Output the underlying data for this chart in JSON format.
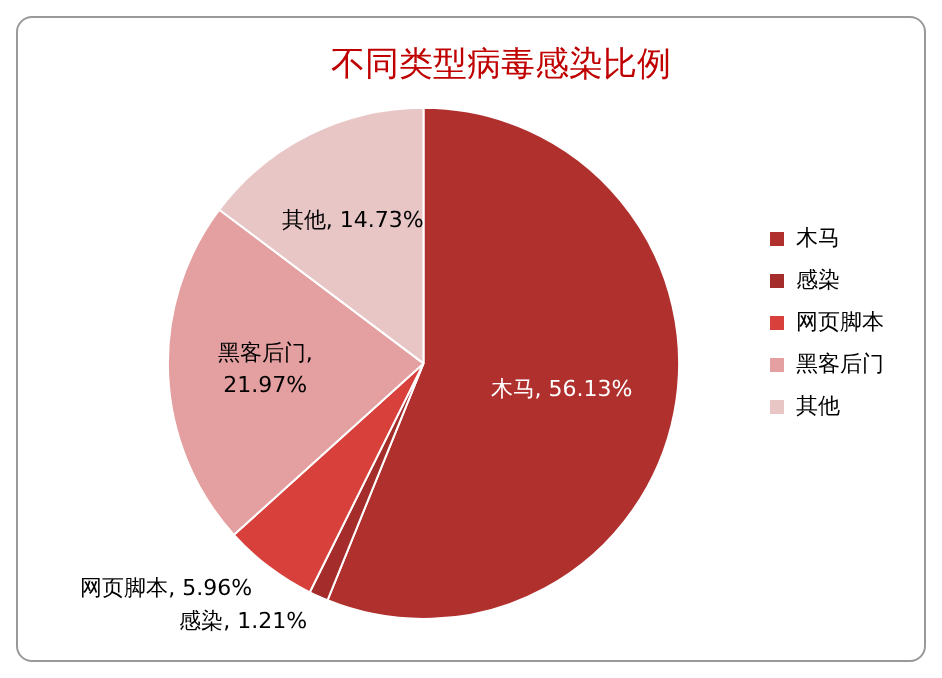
{
  "chart_data": {
    "type": "pie",
    "title": "不同类型病毒感染比例",
    "categories": [
      "木马",
      "感染",
      "网页脚本",
      "黑客后门",
      "其他"
    ],
    "values": [
      56.13,
      1.21,
      5.96,
      21.97,
      14.73
    ],
    "value_labels": [
      "木马, 56.13%",
      "感染, 1.21%",
      "网页脚本, 5.96%",
      "黑客后门, 21.97%",
      "其他, 14.73%"
    ],
    "colors": [
      "#b0302e",
      "#a42c2a",
      "#d8403c",
      "#e4a0a0",
      "#e8c6c6"
    ],
    "legend": "right"
  }
}
